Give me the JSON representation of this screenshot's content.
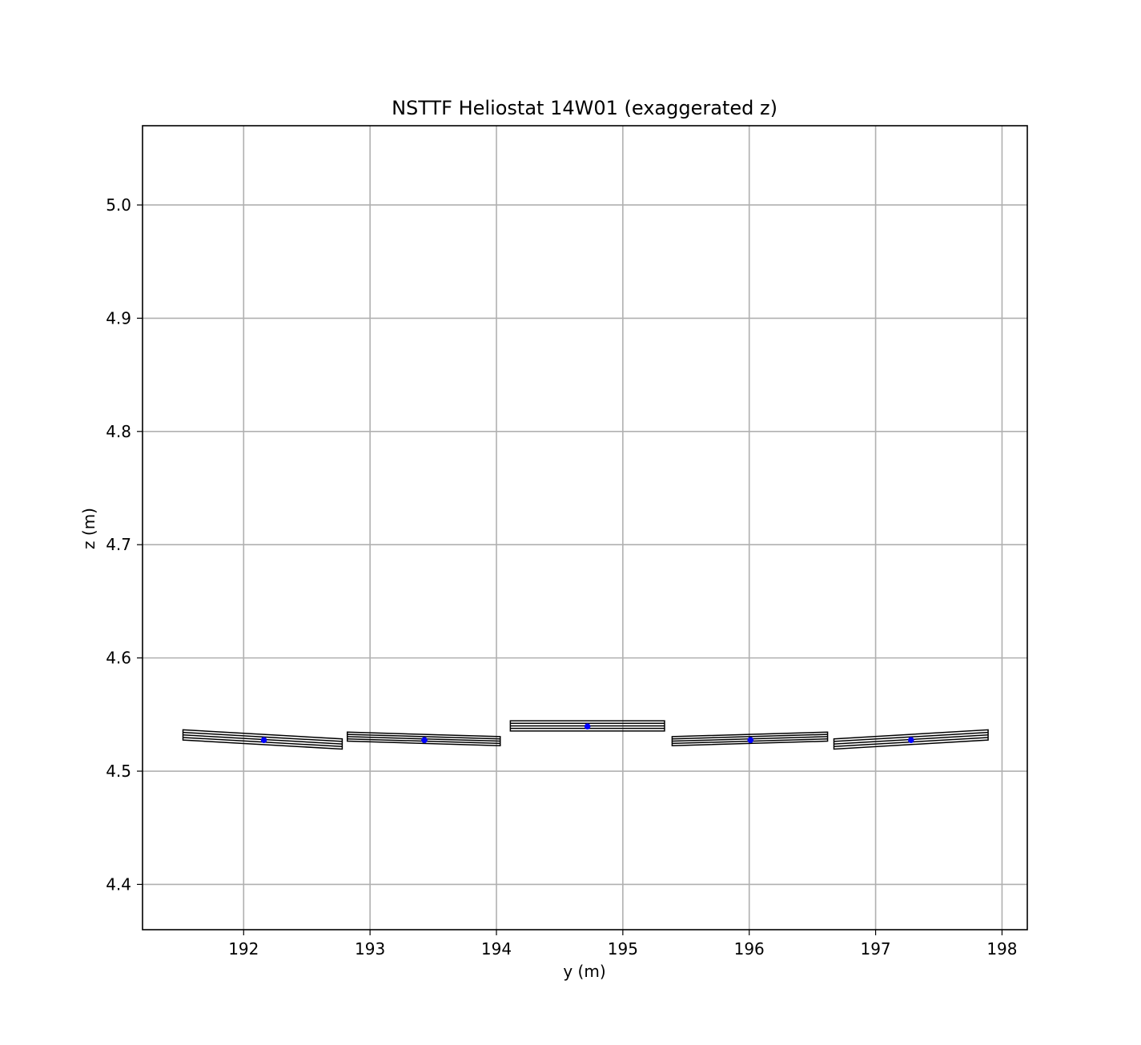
{
  "chart_data": {
    "type": "line",
    "title": "NSTTF Heliostat 14W01 (exaggerated z)",
    "xlabel": "y (m)",
    "ylabel": "z (m)",
    "xlim": [
      191.2,
      198.2
    ],
    "ylim": [
      4.36,
      5.07
    ],
    "xticks": [
      192,
      193,
      194,
      195,
      196,
      197,
      198
    ],
    "yticks": [
      4.4,
      4.5,
      4.6,
      4.7,
      4.8,
      4.9,
      5.0
    ],
    "xtick_labels": [
      "192",
      "193",
      "194",
      "195",
      "196",
      "197",
      "198"
    ],
    "ytick_labels": [
      "4.4",
      "4.5",
      "4.6",
      "4.7",
      "4.8",
      "4.9",
      "5.0"
    ],
    "grid": true,
    "colors": {
      "facet_outline": "#000000",
      "centroid": "#0000ff",
      "grid": "#b0b0b0"
    },
    "facets": [
      {
        "y": [
          191.52,
          192.78
        ],
        "z_top": [
          4.5365,
          4.5285
        ],
        "z_bottom": [
          4.5275,
          4.5195
        ],
        "center": [
          192.16,
          4.5275
        ]
      },
      {
        "y": [
          192.82,
          194.03
        ],
        "z_top": [
          4.5345,
          4.5305
        ],
        "z_bottom": [
          4.5265,
          4.5225
        ],
        "center": [
          193.43,
          4.5275
        ]
      },
      {
        "y": [
          194.11,
          195.33
        ],
        "z_top": [
          4.5445,
          4.5445
        ],
        "z_bottom": [
          4.5355,
          4.5355
        ],
        "center": [
          194.72,
          4.5395
        ]
      },
      {
        "y": [
          195.39,
          196.62
        ],
        "z_top": [
          4.5305,
          4.5345
        ],
        "z_bottom": [
          4.5225,
          4.5265
        ],
        "center": [
          196.01,
          4.5275
        ]
      },
      {
        "y": [
          196.67,
          197.89
        ],
        "z_top": [
          4.5285,
          4.5365
        ],
        "z_bottom": [
          4.5195,
          4.5275
        ],
        "center": [
          197.28,
          4.5275
        ]
      }
    ]
  }
}
